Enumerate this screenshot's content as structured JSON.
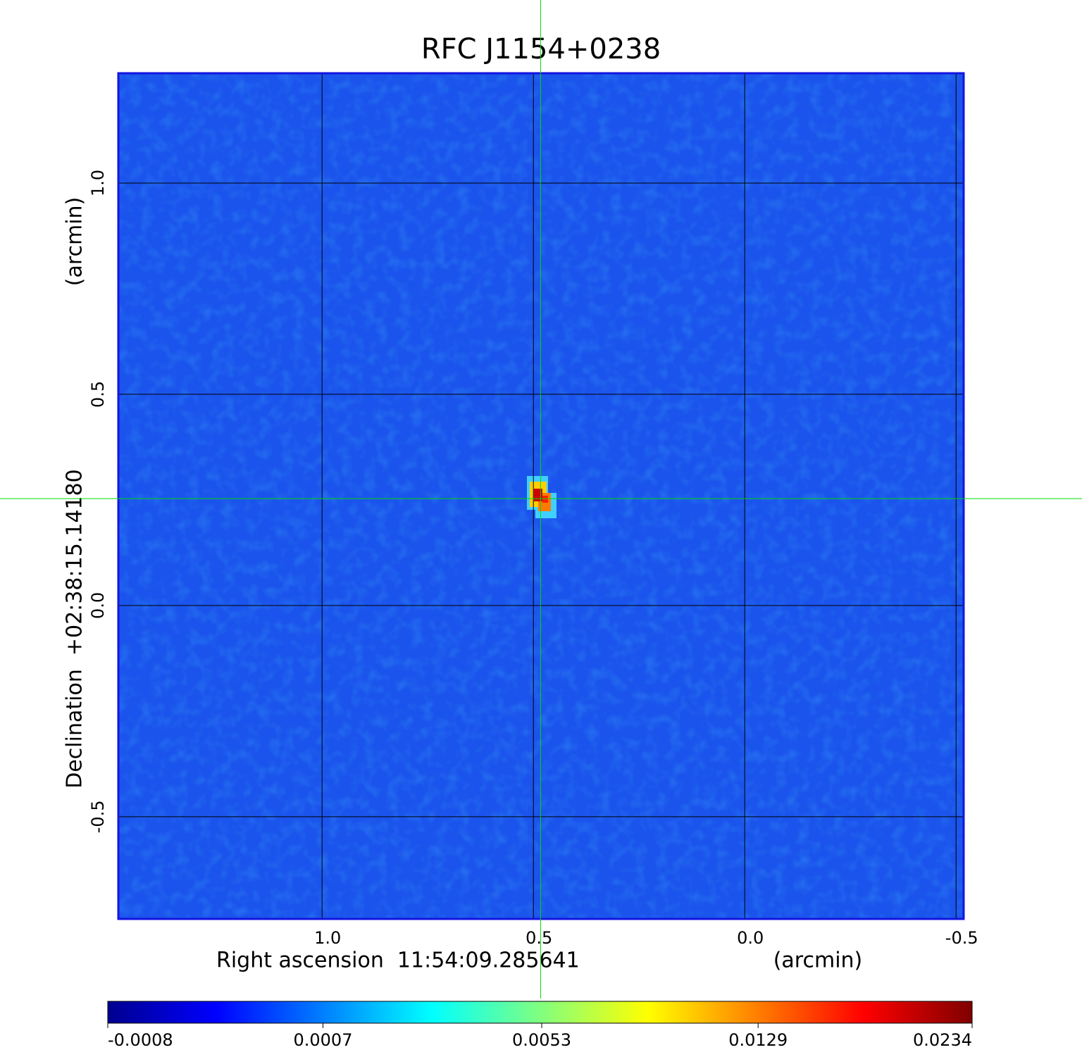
{
  "chart_data": {
    "type": "image",
    "title": "RFC J1154+0238",
    "title_color": "#1414d2",
    "x_label": "Right ascension  11:54:09.285641",
    "x_unit": "(arcmin)",
    "y_label": "Declination  +02:38:15.14180",
    "y_unit": "(arcmin)",
    "xlim": [
      1.482,
      -0.518
    ],
    "xticks": [
      {
        "value": 1,
        "label": "1.0"
      },
      {
        "value": 0.5,
        "label": "0.5"
      },
      {
        "value": 0,
        "label": "0.0"
      },
      {
        "value": -0.5,
        "label": "-0.5"
      }
    ],
    "ylim": [
      -0.742,
      1.26
    ],
    "yticks": [
      {
        "value": 1,
        "label": "1.0"
      },
      {
        "value": 0.5,
        "label": "0.5"
      },
      {
        "value": 0,
        "label": "0.0"
      },
      {
        "value": -0.5,
        "label": "-0.5"
      }
    ],
    "grid": true,
    "marker": {
      "x": 0.483,
      "y": 0.253,
      "color": "#00dd00"
    },
    "colorbar": {
      "colormap": "jet",
      "scale": "sqrt",
      "lim": [
        -0.0008,
        0.0234
      ],
      "ticks": [
        -0.0008,
        0.0007,
        0.0053,
        0.0129,
        0.0234
      ]
    }
  }
}
